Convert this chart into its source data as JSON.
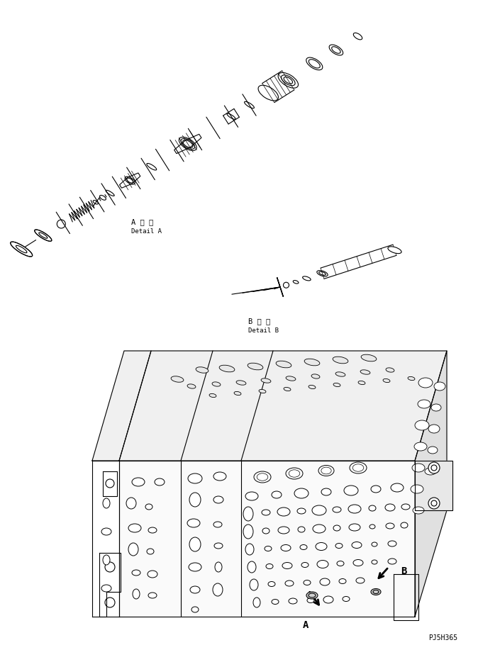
{
  "bg_color": "#ffffff",
  "line_color": "#000000",
  "fig_width": 6.74,
  "fig_height": 9.1,
  "dpi": 100,
  "label_A_detail_jp": "A 詳 細",
  "label_A_detail_en": "Detail A",
  "label_B_detail_jp": "B 詳 細",
  "label_B_detail_en": "Detail B",
  "label_A": "A",
  "label_B": "B",
  "part_number": "PJ5H365"
}
